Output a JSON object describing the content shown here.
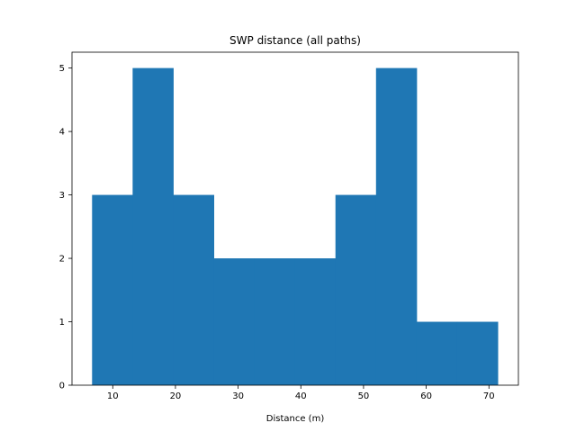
{
  "chart_data": {
    "type": "bar",
    "subtype": "histogram",
    "title": "SWP distance (all paths)",
    "xlabel": "Distance (m)",
    "ylabel": "",
    "xlim": [
      3.5,
      74.7
    ],
    "ylim": [
      0,
      5.25
    ],
    "xticks": [
      10,
      20,
      30,
      40,
      50,
      60,
      70
    ],
    "yticks": [
      0,
      1,
      2,
      3,
      4,
      5
    ],
    "bar_color": "#1f77b4",
    "grid": false,
    "bins": [
      {
        "x0": 6.7,
        "x1": 13.17,
        "count": 3
      },
      {
        "x0": 13.17,
        "x1": 19.64,
        "count": 5
      },
      {
        "x0": 19.64,
        "x1": 26.11,
        "count": 3
      },
      {
        "x0": 26.11,
        "x1": 32.58,
        "count": 2
      },
      {
        "x0": 32.58,
        "x1": 39.05,
        "count": 2
      },
      {
        "x0": 39.05,
        "x1": 45.52,
        "count": 2
      },
      {
        "x0": 45.52,
        "x1": 51.99,
        "count": 3
      },
      {
        "x0": 51.99,
        "x1": 58.46,
        "count": 5
      },
      {
        "x0": 58.46,
        "x1": 64.93,
        "count": 1
      },
      {
        "x0": 64.93,
        "x1": 71.4,
        "count": 1
      }
    ]
  }
}
